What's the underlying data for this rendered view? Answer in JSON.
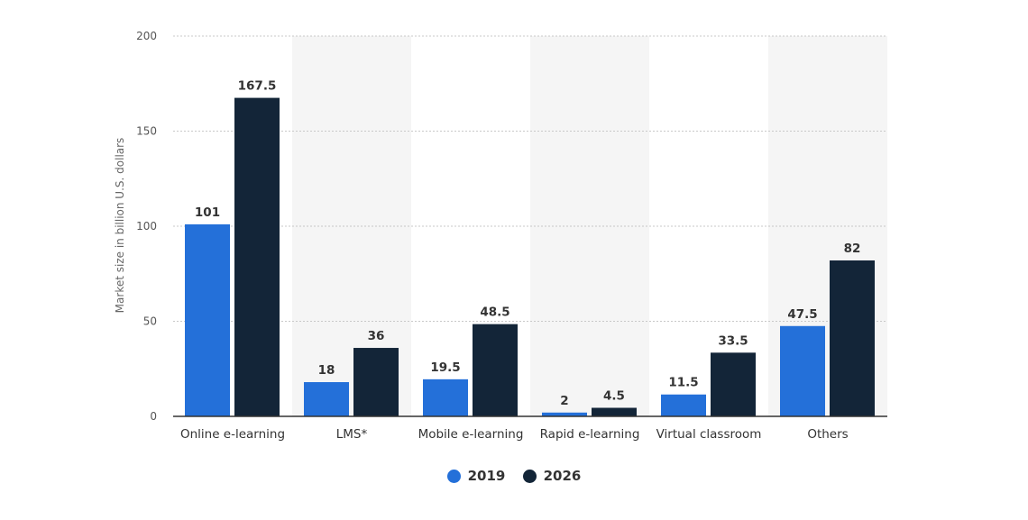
{
  "chart_data": {
    "type": "bar",
    "categories": [
      "Online e-learning",
      "LMS*",
      "Mobile e-learning",
      "Rapid e-learning",
      "Virtual classroom",
      "Others"
    ],
    "series": [
      {
        "name": "2019",
        "values": [
          101,
          18,
          19.5,
          2,
          11.5,
          47.5
        ],
        "color": "#2470d9"
      },
      {
        "name": "2026",
        "values": [
          167.5,
          36,
          48.5,
          4.5,
          33.5,
          82
        ],
        "color": "#132538"
      }
    ],
    "value_labels": [
      [
        "101",
        "18",
        "19.5",
        "2",
        "11.5",
        "47.5"
      ],
      [
        "167.5",
        "36",
        "48.5",
        "4.5",
        "33.5",
        "82"
      ]
    ],
    "ylabel": "Market size in billion U.S. dollars",
    "ylim": [
      0,
      200
    ],
    "yticks": [
      "0",
      "50",
      "100",
      "150",
      "200"
    ],
    "grid": true,
    "legend_position": "bottom-center"
  }
}
